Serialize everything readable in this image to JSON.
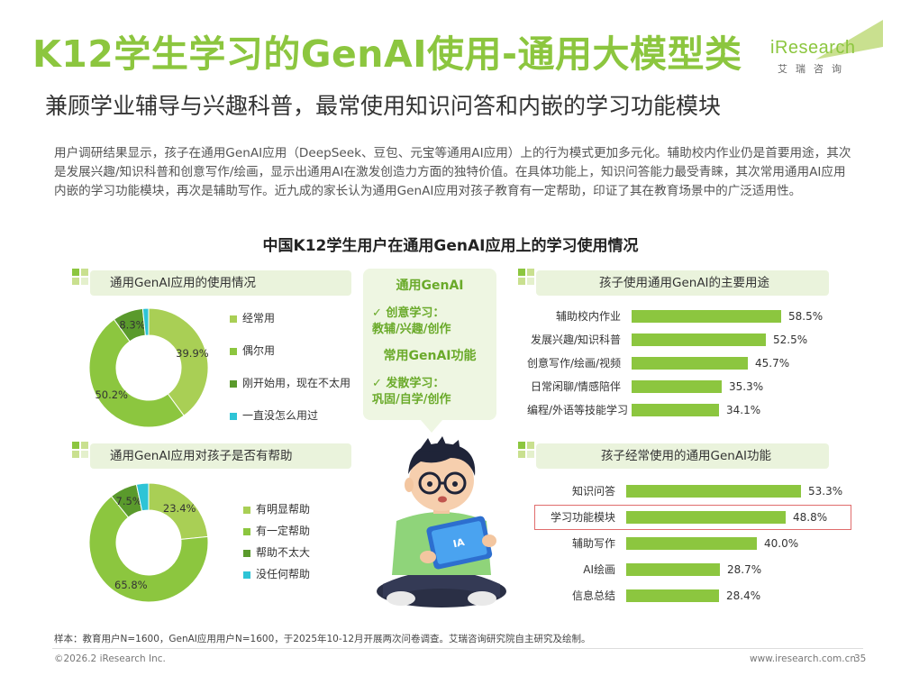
{
  "header": {
    "title": "K12学生学习的GenAI使用-通用大模型类",
    "subtitle": "兼顾学业辅导与兴趣科普，最常使用知识问答和内嵌的学习功能模块",
    "logo_en": "iResearch",
    "logo_cn": "艾瑞咨询"
  },
  "intro": "用户调研结果显示，孩子在通用GenAI应用（DeepSeek、豆包、元宝等通用AI应用）上的行为模式更加多元化。辅助校内作业仍是首要用途，其次是发展兴趣/知识科普和创意写作/绘画，显示出通用AI在激发创造力方面的独特价值。在具体功能上，知识问答能力最受青睐，其次常用通用AI应用内嵌的学习功能模块，再次是辅助写作。近九成的家长认为通用GenAI应用对孩子教育有一定帮助，印证了其在教育场景中的广泛适用性。",
  "colors": {
    "primary_green": "#8cc63f",
    "mid_green": "#6fa832",
    "dark_green": "#4e8a2a",
    "cyan": "#2ec4d6",
    "highlight_red": "#e06c6c"
  },
  "bubble": {
    "head1": "通用GenAI",
    "line1": "✓ 创意学习：",
    "line2": "教辅/兴趣/创作",
    "head2": "常用GenAI功能",
    "line3": "✓ 发散学习：",
    "line4": "巩固/自学/创作"
  },
  "chart_data": [
    {
      "type": "pie",
      "title": "中国K12学生用户在通用GenAI应用上的学习使用情况",
      "panel_title": "通用GenAI应用的使用情况",
      "categories": [
        "经常用",
        "偶尔用",
        "刚开始用，现在不太用",
        "一直没怎么用过"
      ],
      "values": [
        39.9,
        50.2,
        8.3,
        1.6
      ],
      "labels": [
        "39.9%",
        "50.2%",
        "8.3%",
        ""
      ],
      "colors": [
        "#a9cf55",
        "#8cc63f",
        "#5a9a2c",
        "#2ec4d6"
      ],
      "legend": "right"
    },
    {
      "type": "pie",
      "panel_title": "通用GenAI应用对孩子是否有帮助",
      "categories": [
        "有明显帮助",
        "有一定帮助",
        "帮助不太大",
        "没任何帮助"
      ],
      "values": [
        23.4,
        65.8,
        7.5,
        3.3
      ],
      "labels": [
        "23.4%",
        "65.8%",
        "7.5%",
        ""
      ],
      "colors": [
        "#a9cf55",
        "#8cc63f",
        "#5a9a2c",
        "#2ec4d6"
      ],
      "legend": "right"
    },
    {
      "type": "bar",
      "panel_title": "孩子使用通用GenAI的主要用途",
      "categories": [
        "辅助校内作业",
        "发展兴趣/知识科普",
        "创意写作/绘画/视频",
        "日常闲聊/情感陪伴",
        "编程/外语等技能学习"
      ],
      "values": [
        58.5,
        52.5,
        45.7,
        35.3,
        34.1
      ],
      "labels": [
        "58.5%",
        "52.5%",
        "45.7%",
        "35.3%",
        "34.1%"
      ],
      "xlim": [
        0,
        60
      ]
    },
    {
      "type": "bar",
      "panel_title": "孩子经常使用的通用GenAI功能",
      "categories": [
        "知识问答",
        "学习功能模块",
        "辅助写作",
        "AI绘画",
        "信息总结"
      ],
      "values": [
        53.3,
        48.8,
        40.0,
        28.7,
        28.4
      ],
      "labels": [
        "53.3%",
        "48.8%",
        "40.0%",
        "28.7%",
        "28.4%"
      ],
      "highlighted": "学习功能模块",
      "xlim": [
        0,
        55
      ]
    }
  ],
  "footer": {
    "note": "样本：教育用户N=1600，GenAI应用用户N=1600，于2025年10-12月开展两次问卷调查。艾瑞咨询研究院自主研究及绘制。",
    "copyright": "©2026.2 iResearch Inc.",
    "url": "www.iresearch.com.cn",
    "page": "35"
  }
}
